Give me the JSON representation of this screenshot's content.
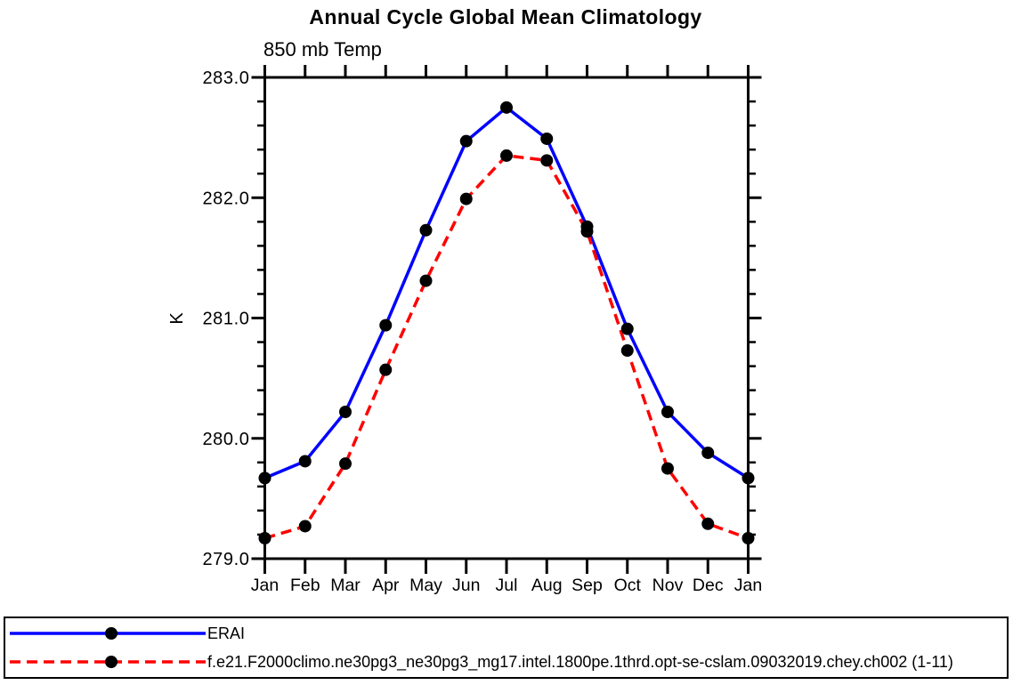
{
  "chart_data": {
    "type": "line",
    "title": "Annual Cycle Global Mean Climatology",
    "subtitle": "850 mb Temp",
    "ylabel": "K",
    "ylim": [
      279.0,
      283.0
    ],
    "y_major_tick_step": 1.0,
    "y_minor_tick_step": 0.2,
    "y_tick_labels": [
      "279.0",
      "280.0",
      "281.0",
      "282.0",
      "283.0"
    ],
    "x_categories": [
      "Jan",
      "Feb",
      "Mar",
      "Apr",
      "May",
      "Jun",
      "Jul",
      "Aug",
      "Sep",
      "Oct",
      "Nov",
      "Dec",
      "Jan"
    ],
    "grid": false,
    "legend_position": "bottom",
    "axis_color": "#000000",
    "marker_shape": "filled-circle",
    "series": [
      {
        "name": "ERAI",
        "color": "#0000ff",
        "line_style": "solid",
        "marker_color": "#000000",
        "values": [
          279.67,
          279.81,
          280.22,
          280.94,
          281.73,
          282.47,
          282.75,
          282.49,
          281.76,
          280.91,
          280.22,
          279.88,
          279.67
        ]
      },
      {
        "name": "f.e21.F2000climo.ne30pg3_ne30pg3_mg17.intel.1800pe.1thrd.opt-se-cslam.09032019.chey.ch002 (1-11)",
        "color": "#ff0000",
        "line_style": "dashed",
        "marker_color": "#000000",
        "values": [
          279.17,
          279.27,
          279.79,
          280.57,
          281.31,
          281.99,
          282.35,
          282.31,
          281.72,
          280.73,
          279.75,
          279.29,
          279.17
        ]
      }
    ]
  }
}
